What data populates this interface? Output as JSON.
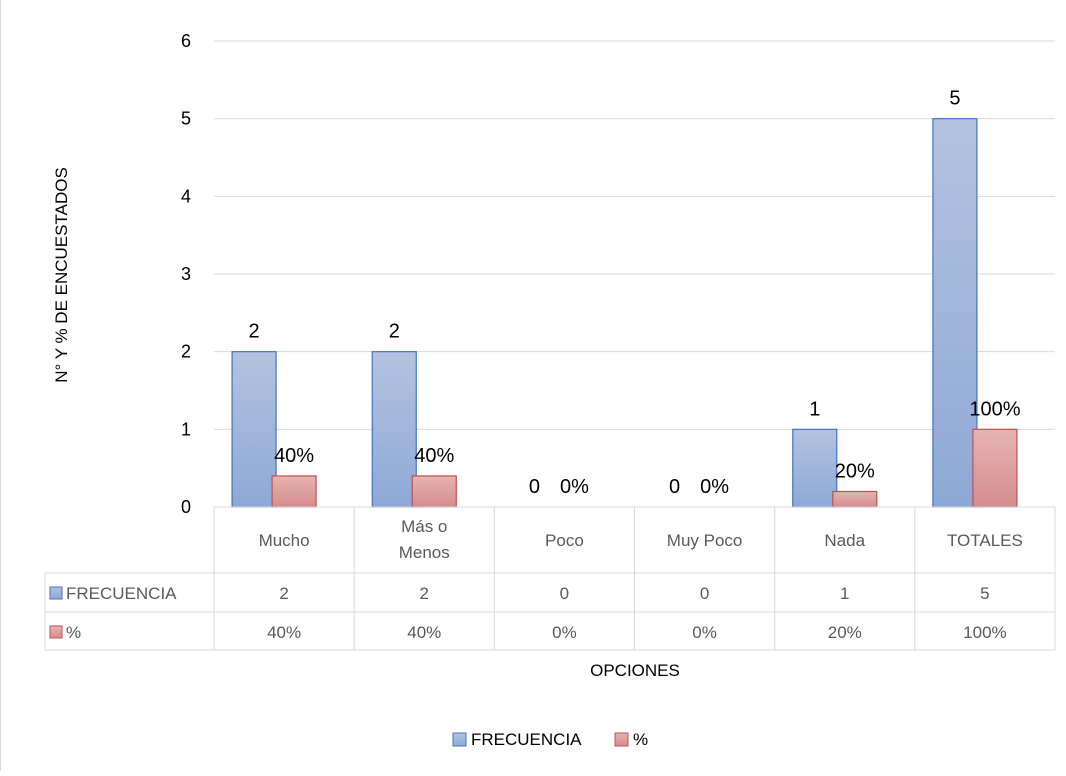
{
  "chart_data": {
    "type": "bar",
    "categories": [
      "Mucho",
      "Más o Menos",
      "Poco",
      "Muy Poco",
      "Nada",
      "TOTALES"
    ],
    "series": [
      {
        "name": "FRECUENCIA",
        "values": [
          2,
          2,
          0,
          0,
          1,
          5
        ],
        "labels": [
          "2",
          "2",
          "0",
          "0",
          "1",
          "5"
        ],
        "color": "#a5b8d9"
      },
      {
        "name": "%",
        "values": [
          0.4,
          0.4,
          0,
          0,
          0.2,
          1
        ],
        "labels": [
          "40%",
          "40%",
          "0%",
          "0%",
          "20%",
          "100%"
        ],
        "color": "#dba1a1"
      }
    ],
    "xlabel": "OPCIONES",
    "ylabel": "N° Y % DE ENCUESTADOS",
    "ylim": [
      0,
      6
    ],
    "yticks": [
      0,
      1,
      2,
      3,
      4,
      5,
      6
    ],
    "grid": true,
    "legend_position": "bottom",
    "data_table": true
  }
}
